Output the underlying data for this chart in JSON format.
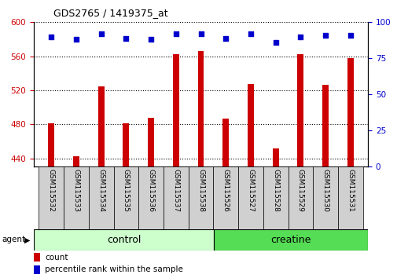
{
  "title": "GDS2765 / 1419375_at",
  "categories": [
    "GSM115532",
    "GSM115533",
    "GSM115534",
    "GSM115535",
    "GSM115536",
    "GSM115537",
    "GSM115538",
    "GSM115526",
    "GSM115527",
    "GSM115528",
    "GSM115529",
    "GSM115530",
    "GSM115531"
  ],
  "counts": [
    481,
    442,
    525,
    481,
    488,
    562,
    566,
    487,
    527,
    452,
    562,
    526,
    558
  ],
  "percentiles": [
    90,
    88,
    92,
    89,
    88,
    92,
    92,
    89,
    92,
    86,
    90,
    91,
    91
  ],
  "ylim_left": [
    430,
    600
  ],
  "ylim_right": [
    0,
    100
  ],
  "yticks_left": [
    440,
    480,
    520,
    560,
    600
  ],
  "yticks_right": [
    0,
    25,
    50,
    75,
    100
  ],
  "bar_color": "#cc0000",
  "dot_color": "#0000cc",
  "n_control": 7,
  "n_creatine": 6,
  "control_color": "#ccffcc",
  "creatine_color": "#55dd55",
  "group_label_control": "control",
  "group_label_creatine": "creatine",
  "agent_label": "agent",
  "legend_count": "count",
  "legend_percentile": "percentile rank within the sample",
  "baseline": 430,
  "cell_color": "#d0d0d0"
}
